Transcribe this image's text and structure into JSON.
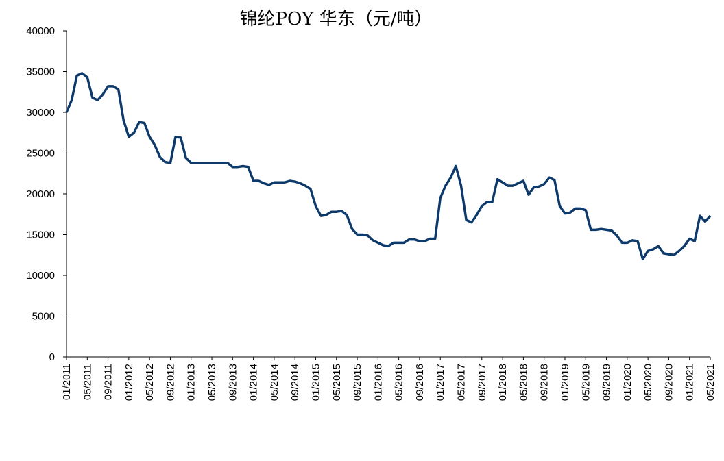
{
  "chart_data": {
    "type": "line",
    "title": "锦纶POY 华东（元/吨）",
    "x": [
      "01/2011",
      "02/2011",
      "03/2011",
      "04/2011",
      "05/2011",
      "06/2011",
      "07/2011",
      "08/2011",
      "09/2011",
      "10/2011",
      "11/2011",
      "12/2011",
      "01/2012",
      "02/2012",
      "03/2012",
      "04/2012",
      "05/2012",
      "06/2012",
      "07/2012",
      "08/2012",
      "09/2012",
      "10/2012",
      "11/2012",
      "12/2012",
      "01/2013",
      "02/2013",
      "03/2013",
      "04/2013",
      "05/2013",
      "06/2013",
      "07/2013",
      "08/2013",
      "09/2013",
      "10/2013",
      "11/2013",
      "12/2013",
      "01/2014",
      "02/2014",
      "03/2014",
      "04/2014",
      "05/2014",
      "06/2014",
      "07/2014",
      "08/2014",
      "09/2014",
      "10/2014",
      "11/2014",
      "12/2014",
      "01/2015",
      "02/2015",
      "03/2015",
      "04/2015",
      "05/2015",
      "06/2015",
      "07/2015",
      "08/2015",
      "09/2015",
      "10/2015",
      "11/2015",
      "12/2015",
      "01/2016",
      "02/2016",
      "03/2016",
      "04/2016",
      "05/2016",
      "06/2016",
      "07/2016",
      "08/2016",
      "09/2016",
      "10/2016",
      "11/2016",
      "12/2016",
      "01/2017",
      "02/2017",
      "03/2017",
      "04/2017",
      "05/2017",
      "06/2017",
      "07/2017",
      "08/2017",
      "09/2017",
      "10/2017",
      "11/2017",
      "12/2017",
      "01/2018",
      "02/2018",
      "03/2018",
      "04/2018",
      "05/2018",
      "06/2018",
      "07/2018",
      "08/2018",
      "09/2018",
      "10/2018",
      "11/2018",
      "12/2018",
      "01/2019",
      "02/2019",
      "03/2019",
      "04/2019",
      "05/2019",
      "06/2019",
      "07/2019",
      "08/2019",
      "09/2019",
      "10/2019",
      "11/2019",
      "12/2019",
      "01/2020",
      "02/2020",
      "03/2020",
      "04/2020",
      "05/2020",
      "06/2020",
      "07/2020",
      "08/2020",
      "09/2020",
      "10/2020",
      "11/2020",
      "12/2020",
      "01/2021",
      "02/2021",
      "03/2021",
      "04/2021",
      "05/2021"
    ],
    "series": [
      {
        "color": "#0d3a6b",
        "values": [
          30000,
          31500,
          34500,
          34800,
          34300,
          31800,
          31500,
          32200,
          33200,
          33200,
          32800,
          29000,
          27000,
          27500,
          28800,
          28700,
          27000,
          26000,
          24500,
          23900,
          23800,
          27000,
          26900,
          24400,
          23800,
          23800,
          23800,
          23800,
          23800,
          23800,
          23800,
          23800,
          23300,
          23300,
          23400,
          23300,
          21600,
          21600,
          21300,
          21100,
          21400,
          21400,
          21400,
          21600,
          21500,
          21300,
          21000,
          20600,
          18500,
          17300,
          17400,
          17800,
          17800,
          17900,
          17400,
          15700,
          15000,
          15000,
          14900,
          14300,
          14000,
          13700,
          13600,
          14000,
          14000,
          14000,
          14400,
          14400,
          14200,
          14200,
          14500,
          14500,
          19500,
          21000,
          22000,
          23400,
          21000,
          16800,
          16500,
          17400,
          18500,
          19000,
          19000,
          21800,
          21400,
          21000,
          21000,
          21300,
          21600,
          19900,
          20800,
          20900,
          21200,
          22000,
          21700,
          18500,
          17600,
          17700,
          18200,
          18200,
          18000,
          15600,
          15600,
          15700,
          15600,
          15500,
          14900,
          14000,
          14000,
          14300,
          14200,
          12000,
          13000,
          13200,
          13600,
          12700,
          12600,
          12500,
          13000,
          13600,
          14500,
          14200,
          17300,
          16600,
          17300
        ]
      }
    ],
    "xticks": [
      "01/2011",
      "05/2011",
      "09/2011",
      "01/2012",
      "05/2012",
      "09/2012",
      "01/2013",
      "05/2013",
      "09/2013",
      "01/2014",
      "05/2014",
      "09/2014",
      "01/2015",
      "05/2015",
      "09/2015",
      "01/2016",
      "05/2016",
      "09/2016",
      "01/2017",
      "05/2017",
      "09/2017",
      "01/2018",
      "05/2018",
      "09/2018",
      "01/2019",
      "05/2019",
      "09/2019",
      "01/2020",
      "05/2020",
      "09/2020",
      "01/2021",
      "05/2021"
    ],
    "ylim": [
      0,
      40000
    ],
    "yticks": [
      0,
      5000,
      10000,
      15000,
      20000,
      25000,
      30000,
      35000,
      40000
    ],
    "grid": false
  }
}
